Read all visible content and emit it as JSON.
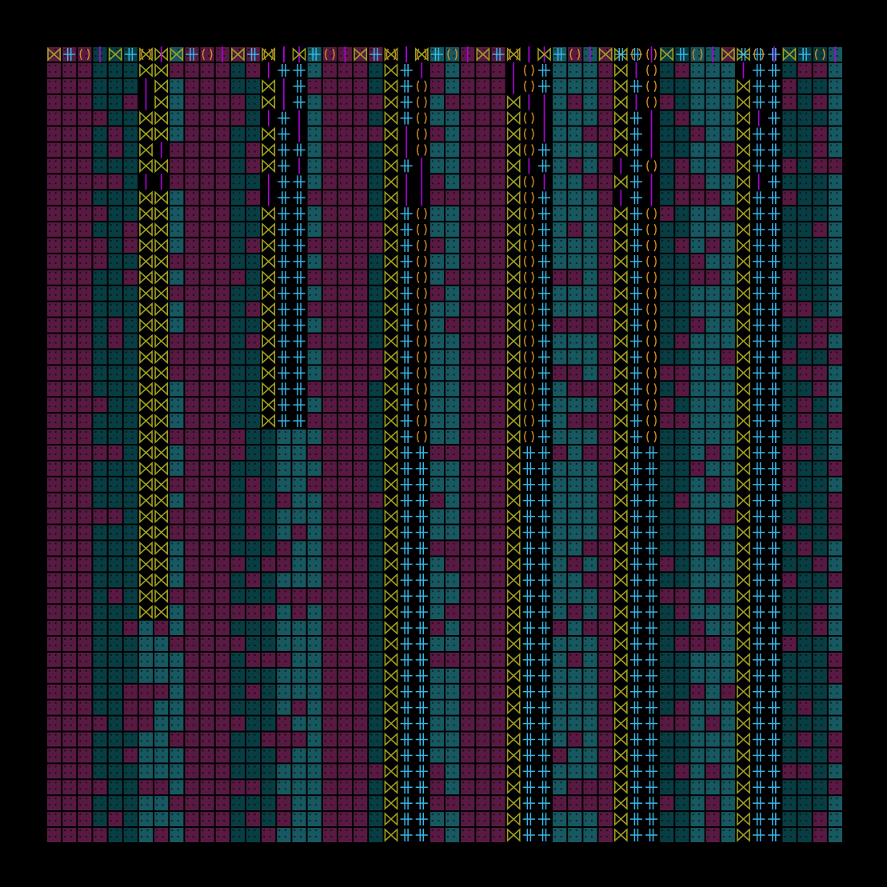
{
  "canvas": {
    "background": "#000000"
  },
  "palette": {
    "magenta_dots": "#a0307a",
    "purple_bars": "#b000e0",
    "teal_panels": "#0f6f7c",
    "teal_dots": "#2aa0b0",
    "olive_bowtie": "#a0a020",
    "cyan_cross": "#38b8e8",
    "orange_paren": "#d08a20"
  },
  "grid": {
    "columns": 52,
    "rows": 50
  },
  "glyph_columns": [
    {
      "name": "column-1",
      "glyph_tokens": [
        "bowtie",
        "bowtie",
        "bowtie"
      ],
      "extent": 0.71
    },
    {
      "name": "column-2",
      "glyph_tokens": [
        "bowtie",
        "cross",
        "cross",
        "bowtie"
      ],
      "extent": 0.47
    },
    {
      "name": "column-3",
      "glyph_tokens": [
        "bowtie",
        "cross",
        "paren",
        "bowtie"
      ],
      "extent": 1.0
    },
    {
      "name": "column-4",
      "glyph_tokens": [
        "bowtie",
        "paren",
        "cross",
        "bowtie"
      ],
      "extent": 1.0
    },
    {
      "name": "column-5",
      "glyph_tokens": [
        "bowtie",
        "cross",
        "paren",
        "cross",
        "bowtie"
      ],
      "extent": 1.0
    },
    {
      "name": "column-6",
      "glyph_tokens": [
        "bowtie",
        "cross",
        "cross",
        "paren",
        "bowtie"
      ],
      "extent": 1.0
    }
  ],
  "legend": []
}
